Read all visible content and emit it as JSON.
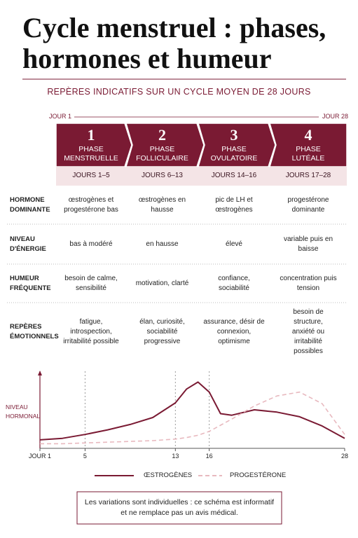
{
  "header": {
    "title": "Cycle menstruel : phases, hormones et humeur",
    "subtitle": "REPÈRES INDICATIFS SUR UN CYCLE MOYEN DE 28 JOURS"
  },
  "timeline": {
    "start": "JOUR 1",
    "end": "JOUR 28"
  },
  "phases": [
    {
      "number": "1",
      "name": "PHASE MENSTRUELLE",
      "days": "JOURS 1–5"
    },
    {
      "number": "2",
      "name": "PHASE FOLLICULAIRE",
      "days": "JOURS 6–13"
    },
    {
      "number": "3",
      "name": "PHASE OVULATOIRE",
      "days": "JOURS 14–16"
    },
    {
      "number": "4",
      "name": "PHASE LUTÉALE",
      "days": "JOURS 17–28"
    }
  ],
  "table": {
    "rows": [
      {
        "label": "HORMONE DOMINANTE",
        "cells": [
          "œstrogènes et progestérone bas",
          "œstrogènes en hausse",
          "pic de LH et œstrogènes",
          "progestérone dominante"
        ]
      },
      {
        "label": "NIVEAU D'ÉNERGIE",
        "cells": [
          "bas à modéré",
          "en hausse",
          "élevé",
          "variable puis en baisse"
        ]
      },
      {
        "label": "HUMEUR FRÉQUENTE",
        "cells": [
          "besoin de calme, sensibilité",
          "motivation, clarté",
          "confiance, sociabilité",
          "concentration puis tension"
        ]
      },
      {
        "label": "REPÈRES ÉMOTIONNELS",
        "cells": [
          "fatigue, introspection, irritabilité possible",
          "élan, curiosité, sociabilité progressive",
          "assurance, désir de connexion, optimisme",
          "besoin de structure, anxiété ou irritabilité possibles"
        ]
      }
    ]
  },
  "chart_data": {
    "type": "line",
    "ylabel": "NIVEAU HORMONAL",
    "x": [
      1,
      3,
      5,
      7,
      9,
      11,
      13,
      14,
      15,
      16,
      17,
      18,
      20,
      22,
      24,
      26,
      28
    ],
    "xlim": [
      1,
      28
    ],
    "xticks": [
      {
        "value": 1,
        "label": "JOUR 1"
      },
      5,
      13,
      16,
      28
    ],
    "ylim": [
      0,
      100
    ],
    "series": [
      {
        "name": "ŒSTROGÈNES",
        "color": "#7a1a33",
        "dash": false,
        "values": [
          11,
          13,
          18,
          24,
          31,
          40,
          59,
          77,
          86,
          73,
          45,
          43,
          50,
          47,
          41,
          29,
          13
        ]
      },
      {
        "name": "PROGESTÉRONE",
        "color": "#e8b9bf",
        "dash": true,
        "values": [
          6,
          6,
          7,
          8,
          9,
          10,
          12,
          14,
          17,
          22,
          30,
          38,
          55,
          68,
          73,
          58,
          18
        ]
      }
    ]
  },
  "footer": {
    "note": "Les variations sont individuelles : ce schéma est informatif et ne remplace pas un avis médical."
  }
}
